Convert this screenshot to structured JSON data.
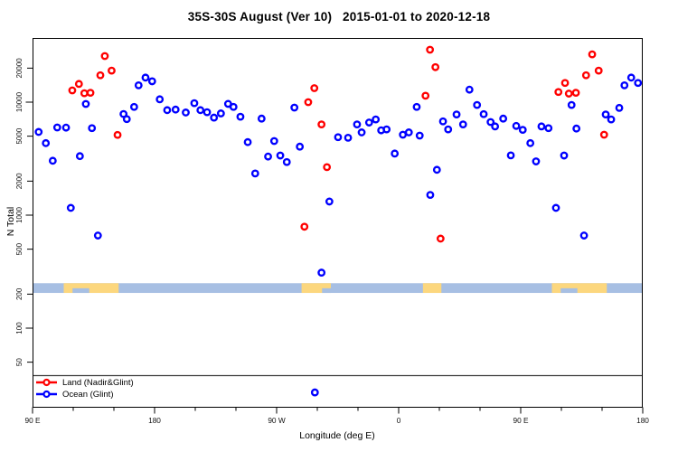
{
  "title": "35S-30S August (Ver 10)   2015-01-01 to 2020-12-18",
  "legend": {
    "items": [
      {
        "label": "Land (Nadir&Glint)",
        "color": "#ff0000"
      },
      {
        "label": "Ocean (Glint)",
        "color": "#0000ff"
      }
    ]
  },
  "colors": {
    "land_series": "#ff0000",
    "ocean_series": "#0000ff",
    "map_ocean": "#a7bfe3",
    "map_land": "#fcd77e",
    "axis": "#000000",
    "threshold_line": "#3a3a3a"
  },
  "chart_data": {
    "type": "scatter",
    "title": "35S-30S August (Ver 10)   2015-01-01 to 2020-12-18",
    "xlabel": "Longitude (deg E)",
    "ylabel": "N Total",
    "y_scale": "log",
    "ylim": [
      18,
      34000
    ],
    "x_axis": {
      "label": "Longitude (deg E)",
      "range_deg": [
        90,
        540
      ],
      "minor_tick_step_deg": 30,
      "ticks": [
        {
          "lon": 90,
          "label": "90 E"
        },
        {
          "lon": 180,
          "label": "180"
        },
        {
          "lon": 270,
          "label": "90 W"
        },
        {
          "lon": 360,
          "label": "0"
        },
        {
          "lon": 450,
          "label": "90 E"
        },
        {
          "lon": 540,
          "label": "180"
        }
      ]
    },
    "y_axis": {
      "label": "N Total",
      "scale": "log",
      "ticks": [
        50,
        100,
        200,
        500,
        1000,
        2000,
        5000,
        10000,
        20000
      ]
    },
    "threshold_line_n": 38,
    "map_band": {
      "n_range": [
        205,
        250
      ],
      "ocean_color": "#a7bfe3",
      "land_color": "#fcd77e",
      "land_segments": [
        {
          "from_lon": 113,
          "to_lon": 153.5,
          "coast_gap": [
            119.5,
            131.8
          ]
        },
        {
          "from_lon": 288.4,
          "to_lon": 310,
          "coast_gap": [
            303.5,
            310
          ]
        },
        {
          "from_lon": 377.9,
          "to_lon": 391.5,
          "coast_gap": null
        },
        {
          "from_lon": 473,
          "to_lon": 513.5,
          "coast_gap": [
            479.5,
            491.8
          ]
        }
      ]
    },
    "series": [
      {
        "name": "Land (Nadir&Glint)",
        "color": "#ff0000",
        "points": [
          [
            143.3,
            25600
          ],
          [
            140,
            17300
          ],
          [
            148.3,
            19000
          ],
          [
            124.2,
            14500
          ],
          [
            119.3,
            12700
          ],
          [
            128.2,
            12000
          ],
          [
            132.7,
            12100
          ],
          [
            152.7,
            5130
          ],
          [
            297.8,
            13300
          ],
          [
            293.3,
            10000
          ],
          [
            303.1,
            6350
          ],
          [
            307.1,
            2660
          ],
          [
            290.5,
            790
          ],
          [
            383.1,
            29100
          ],
          [
            387.1,
            20400
          ],
          [
            379.8,
            11400
          ],
          [
            390.9,
            620
          ],
          [
            502.7,
            26500
          ],
          [
            507.5,
            19000
          ],
          [
            498.2,
            17300
          ],
          [
            482.7,
            14800
          ],
          [
            477.8,
            12300
          ],
          [
            485.5,
            11900
          ],
          [
            490.7,
            12100
          ],
          [
            511.5,
            5150
          ]
        ]
      },
      {
        "name": "Ocean (Glint)",
        "color": "#0000ff",
        "points": [
          [
            94.5,
            5450
          ],
          [
            99.8,
            4340
          ],
          [
            108.2,
            5970
          ],
          [
            114.7,
            5950
          ],
          [
            104.9,
            3030
          ],
          [
            124.9,
            3330
          ],
          [
            129.3,
            9640
          ],
          [
            133.8,
            5890
          ],
          [
            118.2,
            1160
          ],
          [
            138.2,
            660
          ],
          [
            164.9,
            9080
          ],
          [
            157.1,
            7850
          ],
          [
            159.5,
            7080
          ],
          [
            168.2,
            14100
          ],
          [
            173.3,
            16500
          ],
          [
            178.2,
            15300
          ],
          [
            183.8,
            10600
          ],
          [
            189.3,
            8500
          ],
          [
            195.5,
            8600
          ],
          [
            203,
            8100
          ],
          [
            209.3,
            9800
          ],
          [
            213.8,
            8500
          ],
          [
            218.7,
            8150
          ],
          [
            223.8,
            7300
          ],
          [
            228.9,
            7950
          ],
          [
            234.2,
            9650
          ],
          [
            238.2,
            9080
          ],
          [
            243.3,
            7430
          ],
          [
            258.9,
            7150
          ],
          [
            248.7,
            4430
          ],
          [
            268.2,
            4530
          ],
          [
            263.7,
            3300
          ],
          [
            272.7,
            3370
          ],
          [
            277.5,
            2950
          ],
          [
            283.1,
            8950
          ],
          [
            287.1,
            4040
          ],
          [
            315.3,
            4900
          ],
          [
            254.2,
            2340
          ],
          [
            308.9,
            1320
          ],
          [
            303.1,
            310
          ],
          [
            298.2,
            27
          ],
          [
            322.7,
            4840
          ],
          [
            329.3,
            6350
          ],
          [
            332.7,
            5400
          ],
          [
            338.2,
            6600
          ],
          [
            343.1,
            7030
          ],
          [
            347.1,
            5630
          ],
          [
            351.1,
            5740
          ],
          [
            357.1,
            3510
          ],
          [
            363.1,
            5150
          ],
          [
            367.5,
            5400
          ],
          [
            373.3,
            9080
          ],
          [
            375.5,
            5060
          ],
          [
            392.7,
            6760
          ],
          [
            396.5,
            5740
          ],
          [
            402.7,
            7780
          ],
          [
            407.5,
            6350
          ],
          [
            412.2,
            12900
          ],
          [
            417.8,
            9440
          ],
          [
            422.7,
            7830
          ],
          [
            427.8,
            6670
          ],
          [
            388.2,
            2520
          ],
          [
            383.3,
            1510
          ],
          [
            431.1,
            6100
          ],
          [
            437.1,
            7150
          ],
          [
            442.7,
            3380
          ],
          [
            446.7,
            6160
          ],
          [
            451.5,
            5690
          ],
          [
            457.1,
            4340
          ],
          [
            461.3,
            2990
          ],
          [
            465.3,
            6100
          ],
          [
            470.5,
            5890
          ],
          [
            476,
            1160
          ],
          [
            482,
            3370
          ],
          [
            487.5,
            9440
          ],
          [
            491.1,
            5840
          ],
          [
            496.7,
            660
          ],
          [
            512.7,
            7780
          ],
          [
            516.7,
            7030
          ],
          [
            522.7,
            8900
          ],
          [
            526.5,
            14100
          ],
          [
            531.5,
            16500
          ],
          [
            536.5,
            14800
          ]
        ]
      }
    ]
  }
}
